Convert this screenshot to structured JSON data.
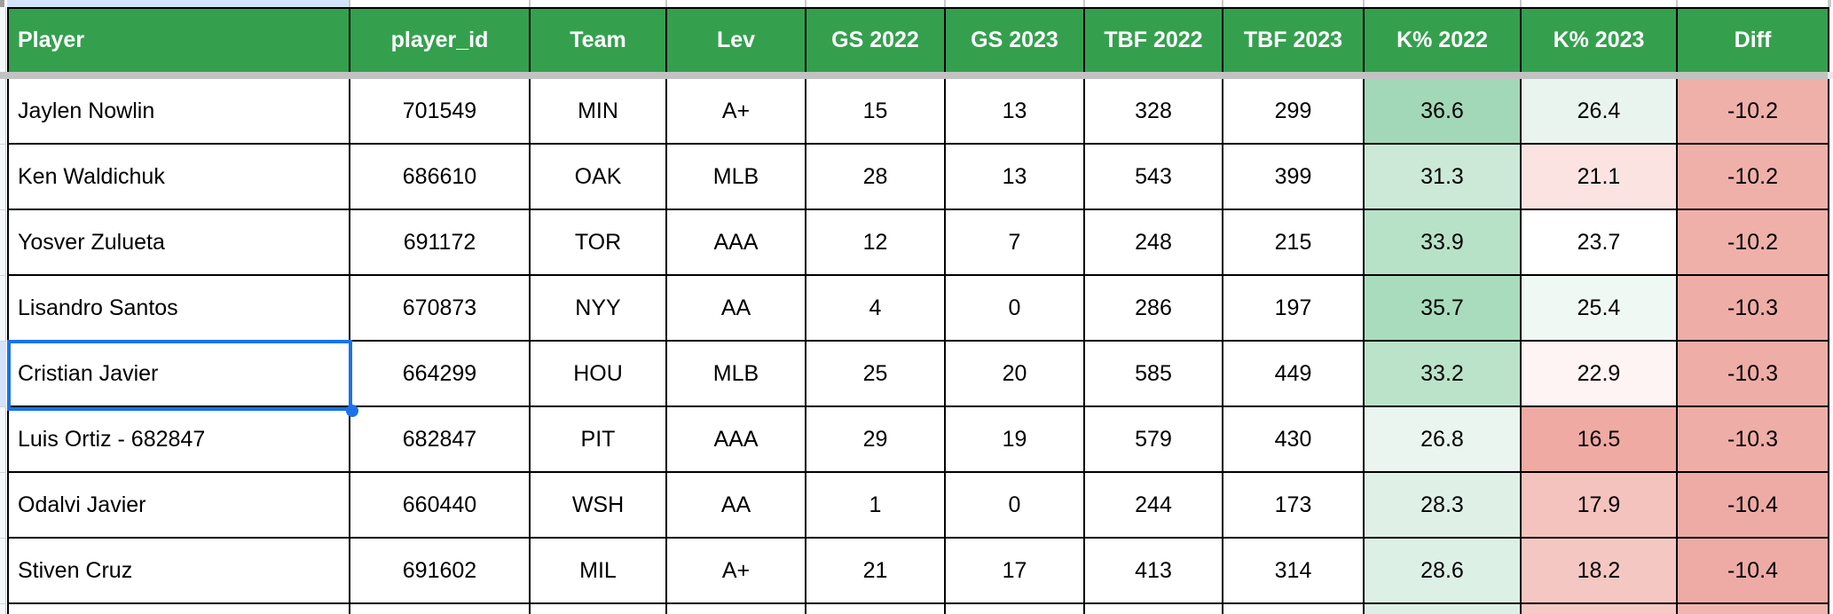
{
  "table": {
    "columns": [
      {
        "key": "player",
        "label": "Player",
        "align": "left"
      },
      {
        "key": "player_id",
        "label": "player_id",
        "align": "center"
      },
      {
        "key": "team",
        "label": "Team",
        "align": "center"
      },
      {
        "key": "lev",
        "label": "Lev",
        "align": "center"
      },
      {
        "key": "gs2022",
        "label": "GS 2022",
        "align": "center"
      },
      {
        "key": "gs2023",
        "label": "GS 2023",
        "align": "center"
      },
      {
        "key": "tbf2022",
        "label": "TBF 2022",
        "align": "center"
      },
      {
        "key": "tbf2023",
        "label": "TBF 2023",
        "align": "center"
      },
      {
        "key": "k2022",
        "label": "K% 2022",
        "align": "center"
      },
      {
        "key": "k2023",
        "label": "K% 2023",
        "align": "center"
      },
      {
        "key": "diff",
        "label": "Diff",
        "align": "center"
      }
    ],
    "rows": [
      {
        "player": "Jaylen Nowlin",
        "player_id": "701549",
        "team": "MIN",
        "lev": "A+",
        "gs2022": "15",
        "gs2023": "13",
        "tbf2022": "328",
        "tbf2023": "299",
        "k2022": "36.6",
        "k2023": "26.4",
        "diff": "-10.2",
        "k2022_bg": "#a2d8b8",
        "k2023_bg": "#e9f4ee",
        "diff_bg": "#f0b0aa"
      },
      {
        "player": "Ken Waldichuk",
        "player_id": "686610",
        "team": "OAK",
        "lev": "MLB",
        "gs2022": "28",
        "gs2023": "13",
        "tbf2022": "543",
        "tbf2023": "399",
        "k2022": "31.3",
        "k2023": "21.1",
        "diff": "-10.2",
        "k2022_bg": "#cbe9d6",
        "k2023_bg": "#fbe3e2",
        "diff_bg": "#f0b0aa"
      },
      {
        "player": "Yosver Zulueta",
        "player_id": "691172",
        "team": "TOR",
        "lev": "AAA",
        "gs2022": "12",
        "gs2023": "7",
        "tbf2022": "248",
        "tbf2023": "215",
        "k2022": "33.9",
        "k2023": "23.7",
        "diff": "-10.2",
        "k2022_bg": "#b8e2c8",
        "k2023_bg": "#ffffff",
        "diff_bg": "#f0b0aa"
      },
      {
        "player": "Lisandro Santos",
        "player_id": "670873",
        "team": "NYY",
        "lev": "AA",
        "gs2022": "4",
        "gs2023": "0",
        "tbf2022": "286",
        "tbf2023": "197",
        "k2022": "35.7",
        "k2023": "25.4",
        "diff": "-10.3",
        "k2022_bg": "#a8dcbc",
        "k2023_bg": "#eff8f2",
        "diff_bg": "#efada7"
      },
      {
        "player": "Cristian Javier",
        "player_id": "664299",
        "team": "HOU",
        "lev": "MLB",
        "gs2022": "25",
        "gs2023": "20",
        "tbf2022": "585",
        "tbf2023": "449",
        "k2022": "33.2",
        "k2023": "22.9",
        "diff": "-10.3",
        "k2022_bg": "#bae3c9",
        "k2023_bg": "#fdf4f3",
        "diff_bg": "#efada7"
      },
      {
        "player": "Luis Ortiz - 682847",
        "player_id": "682847",
        "team": "PIT",
        "lev": "AAA",
        "gs2022": "29",
        "gs2023": "19",
        "tbf2022": "579",
        "tbf2023": "430",
        "k2022": "26.8",
        "k2023": "16.5",
        "diff": "-10.3",
        "k2022_bg": "#e9f5ee",
        "k2023_bg": "#efaaa4",
        "diff_bg": "#efada7"
      },
      {
        "player": "Odalvi Javier",
        "player_id": "660440",
        "team": "WSH",
        "lev": "AA",
        "gs2022": "1",
        "gs2023": "0",
        "tbf2022": "244",
        "tbf2023": "173",
        "k2022": "28.3",
        "k2023": "17.9",
        "diff": "-10.4",
        "k2022_bg": "#dff1e7",
        "k2023_bg": "#f4c3be",
        "diff_bg": "#eeaba5"
      },
      {
        "player": "Stiven Cruz",
        "player_id": "691602",
        "team": "MIL",
        "lev": "A+",
        "gs2022": "21",
        "gs2023": "17",
        "tbf2022": "413",
        "tbf2023": "314",
        "k2022": "28.6",
        "k2023": "18.2",
        "diff": "-10.4",
        "k2022_bg": "#ddf0e6",
        "k2023_bg": "#f5c7c2",
        "diff_bg": "#eeaba5"
      }
    ],
    "partial_row_bg": {
      "k2022": "#ddf0e6",
      "k2023": "#f5c9c4",
      "diff": "#f2b6b0"
    }
  },
  "selection": {
    "selected_row_index": 4,
    "selected_column": "player",
    "selected_value": "Cristian Javier"
  },
  "colors": {
    "header_bg": "#34a04e",
    "header_text": "#ffffff",
    "grid_line": "#000000",
    "selection_blue": "#1a73e8",
    "freeze_divider_gray": "#c2c2c2",
    "row_header_bg": "#f6f7f9",
    "header_highlight_blue": "#d3e3fd"
  }
}
